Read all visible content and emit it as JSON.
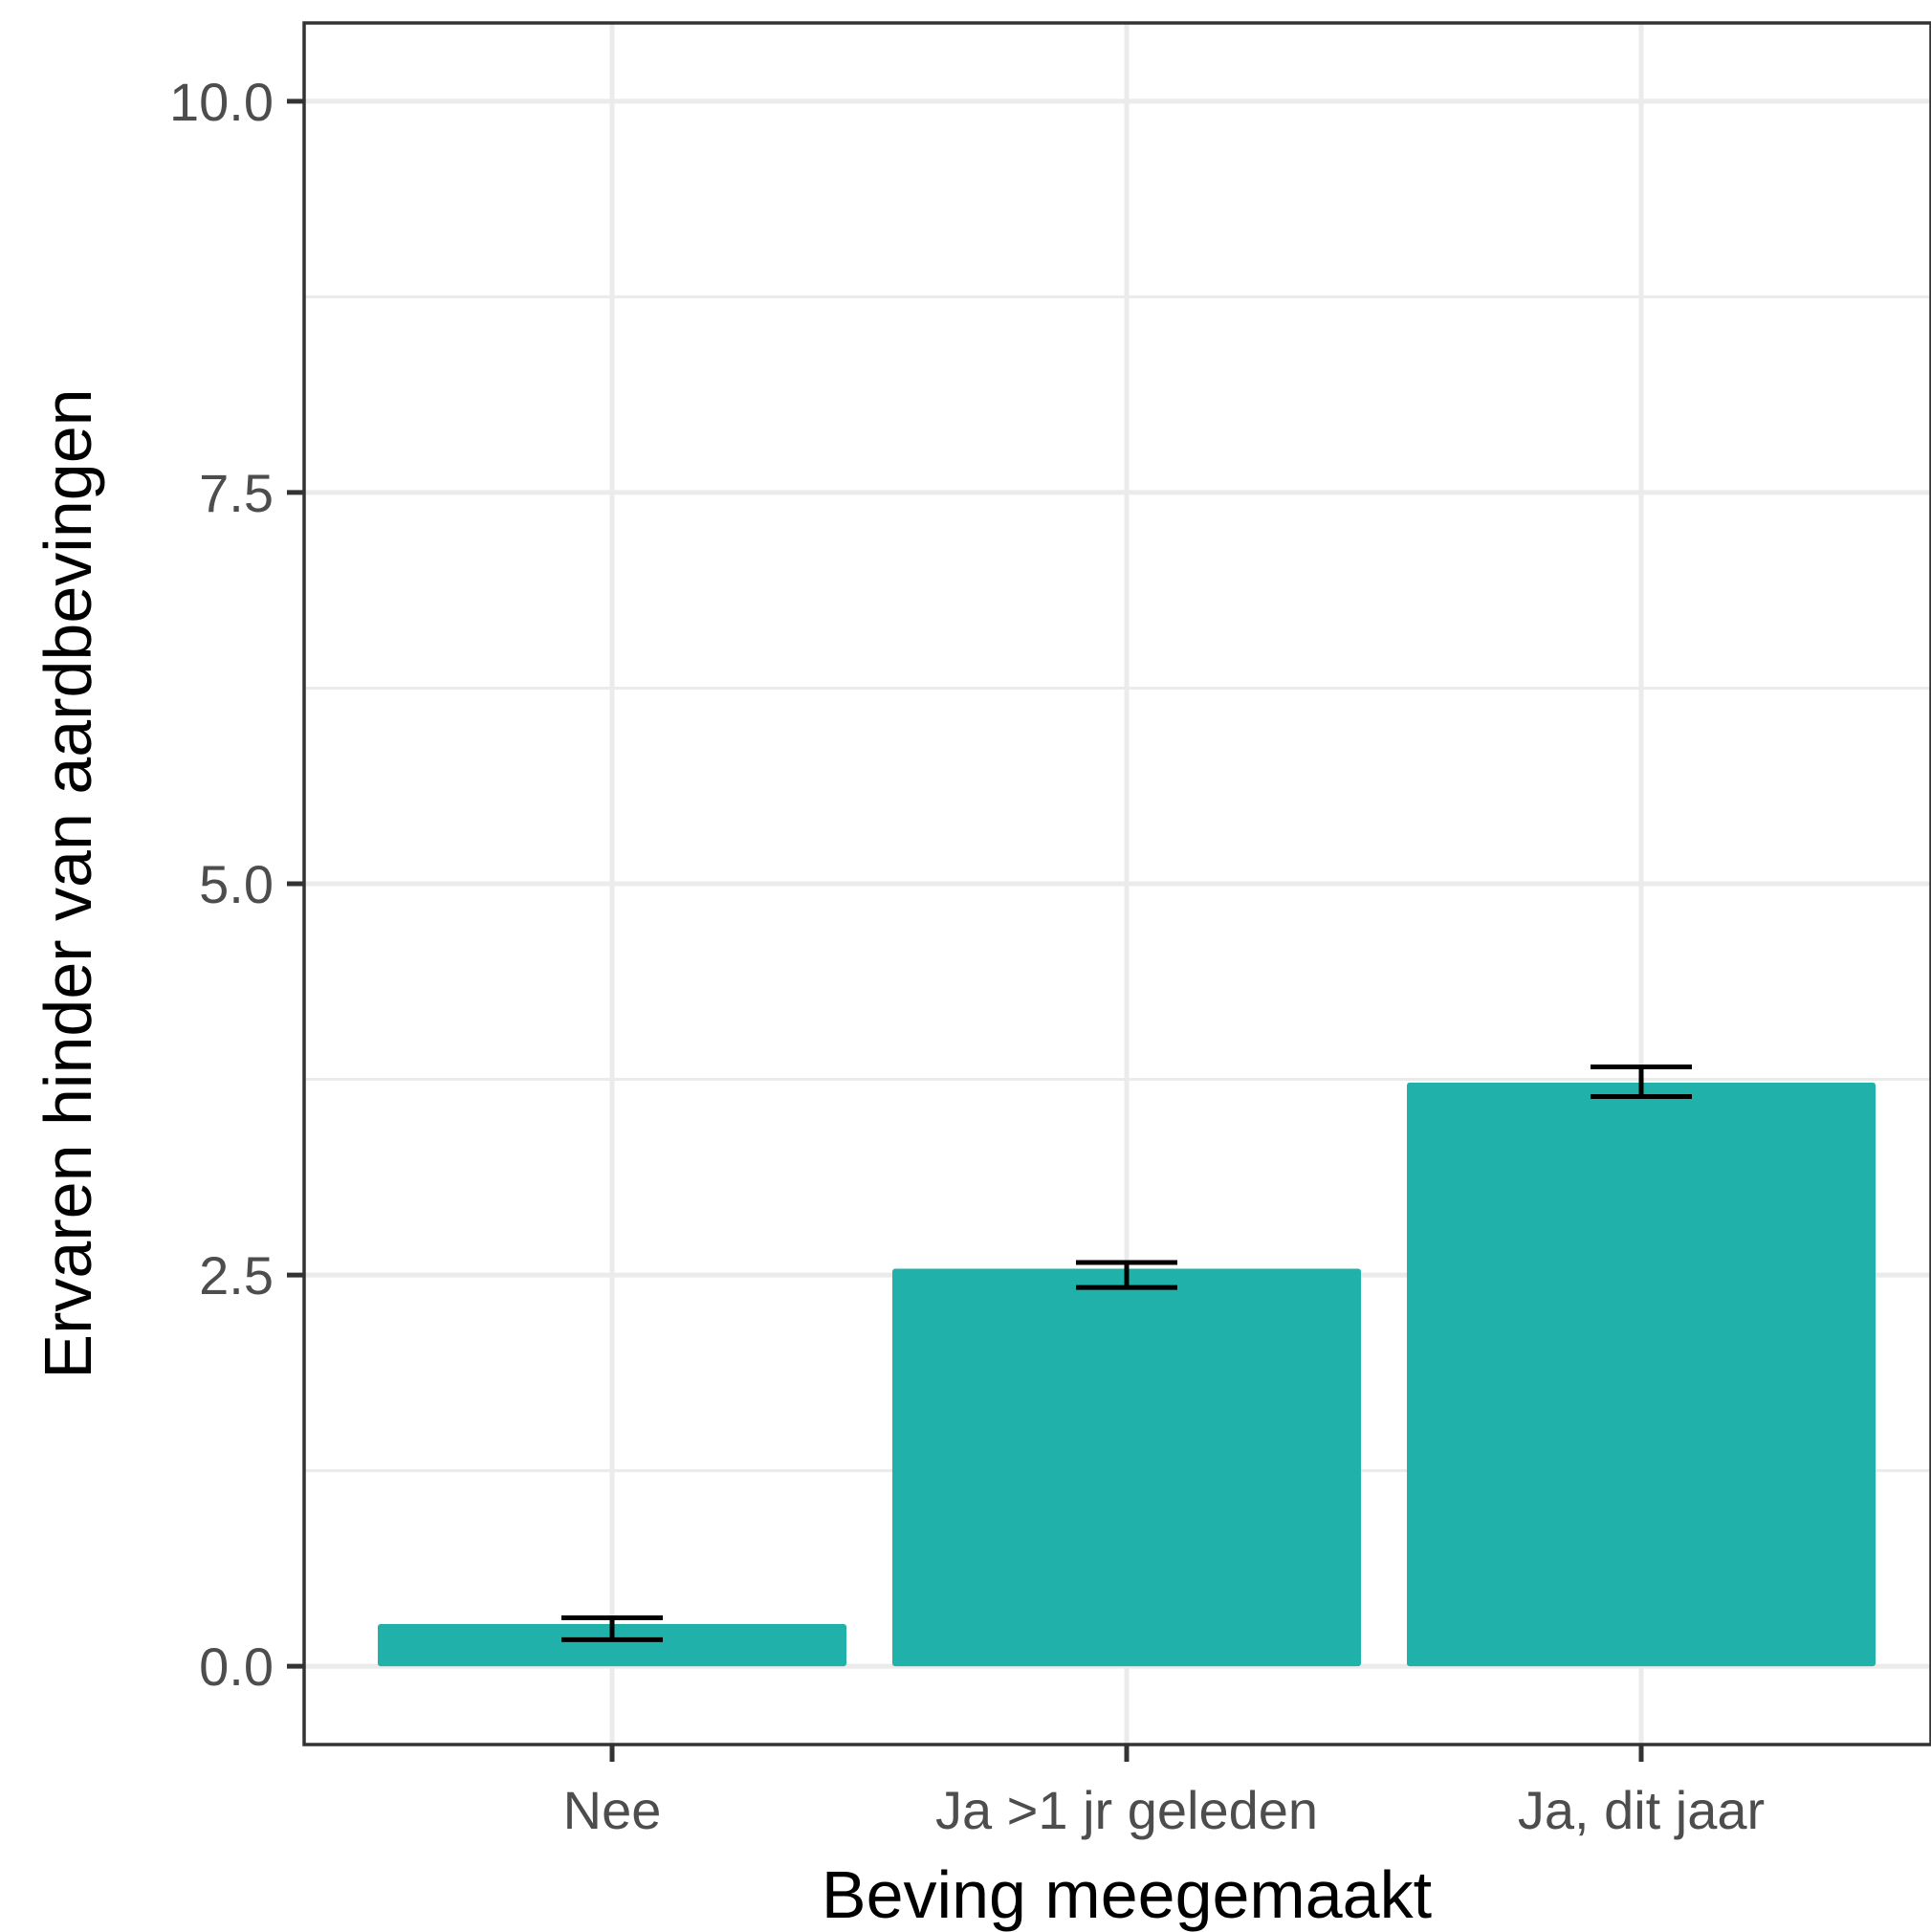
{
  "chart_data": {
    "type": "bar",
    "categories": [
      "Nee",
      "Ja >1 jr geleden",
      "Ja, dit jaar"
    ],
    "values": [
      0.27,
      2.54,
      3.73
    ],
    "error_bars": [
      {
        "low": 0.17,
        "high": 0.31
      },
      {
        "low": 2.42,
        "high": 2.58
      },
      {
        "low": 3.64,
        "high": 3.83
      }
    ],
    "title": "",
    "xlabel": "Beving meegemaakt",
    "ylabel": "Ervaren hinder van aardbevingen",
    "ylim": [
      -0.5,
      10.5
    ],
    "y_ticks": [
      0.0,
      2.5,
      5.0,
      7.5,
      10.0
    ],
    "y_tick_labels": [
      "0.0",
      "2.5",
      "5.0",
      "7.5",
      "10.0"
    ],
    "y_minor_ticks": [
      1.25,
      3.75,
      6.25,
      8.75
    ],
    "grid": true,
    "bar_color": "#20b2aa",
    "panel_background": "#ffffff",
    "grid_color": "#ebebeb"
  }
}
